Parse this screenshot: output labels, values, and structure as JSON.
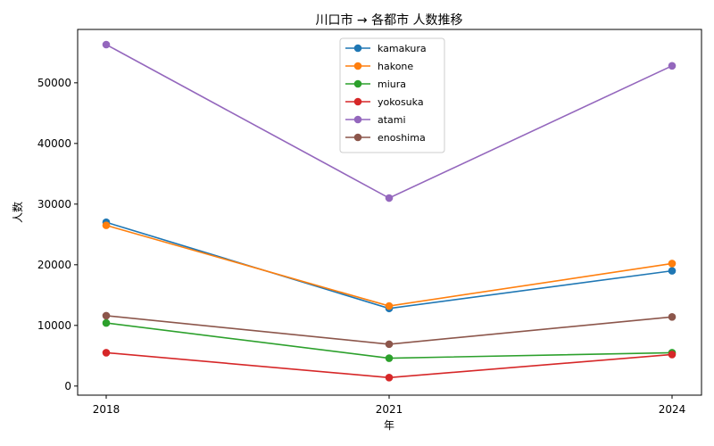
{
  "chart_data": {
    "type": "line",
    "title": "川口市 → 各都市 人数推移",
    "xlabel": "年",
    "ylabel": "人数",
    "x": [
      2018,
      2021,
      2024
    ],
    "x_tick_labels": [
      "2018",
      "2021",
      "2024"
    ],
    "ylim": [
      -1500,
      58800
    ],
    "y_ticks": [
      0,
      10000,
      20000,
      30000,
      40000,
      50000
    ],
    "y_tick_labels": [
      "0",
      "10000",
      "20000",
      "30000",
      "40000",
      "50000"
    ],
    "grid": false,
    "legend_position": "top-center",
    "series": [
      {
        "name": "kamakura",
        "color": "#1f77b4",
        "values": [
          27000,
          12800,
          19000
        ]
      },
      {
        "name": "hakone",
        "color": "#ff7f0e",
        "values": [
          26500,
          13200,
          20200
        ]
      },
      {
        "name": "miura",
        "color": "#2ca02c",
        "values": [
          10400,
          4600,
          5500
        ]
      },
      {
        "name": "yokosuka",
        "color": "#d62728",
        "values": [
          5500,
          1400,
          5200
        ]
      },
      {
        "name": "atami",
        "color": "#9467bd",
        "values": [
          56300,
          31000,
          52800
        ]
      },
      {
        "name": "enoshima",
        "color": "#8c564b",
        "values": [
          11600,
          6900,
          11400
        ]
      }
    ]
  }
}
